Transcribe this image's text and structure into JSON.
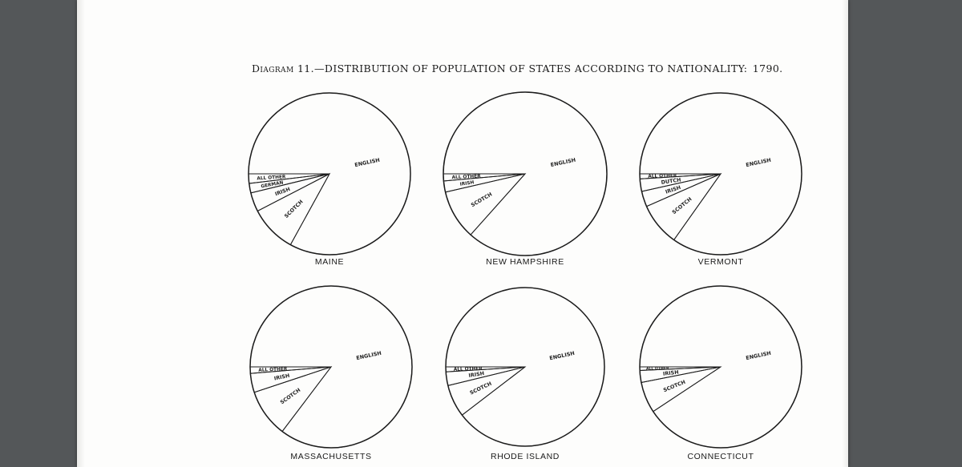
{
  "diagram": {
    "prefix": "Diagram",
    "title": "11.—DISTRIBUTION OF POPULATION OF STATES ACCORDING TO NATIONALITY:",
    "year": "1790."
  },
  "chart_data": [
    {
      "type": "pie",
      "title": "MAINE",
      "categories": [
        "ENGLISH",
        "SCOTCH",
        "IRISH",
        "GERMAN",
        "ALL OTHER"
      ],
      "values": [
        83.0,
        9.4,
        3.8,
        1.9,
        1.9
      ]
    },
    {
      "type": "pie",
      "title": "NEW HAMPSHIRE",
      "categories": [
        "ENGLISH",
        "SCOTCH",
        "IRISH",
        "ALL OTHER"
      ],
      "values": [
        86.6,
        9.8,
        2.2,
        1.4
      ]
    },
    {
      "type": "pie",
      "title": "VERMONT",
      "categories": [
        "ENGLISH",
        "SCOTCH",
        "IRISH",
        "DUTCH",
        "ALL OTHER"
      ],
      "values": [
        84.8,
        8.6,
        3.1,
        2.5,
        1.0
      ]
    },
    {
      "type": "pie",
      "title": "MASSACHUSETTS",
      "categories": [
        "ENGLISH",
        "SCOTCH",
        "IRISH",
        "ALL OTHER"
      ],
      "values": [
        85.3,
        9.6,
        3.8,
        1.3
      ]
    },
    {
      "type": "pie",
      "title": "RHODE ISLAND",
      "categories": [
        "ENGLISH",
        "SCOTCH",
        "IRISH",
        "ALL OTHER"
      ],
      "values": [
        89.6,
        6.6,
        2.8,
        1.0
      ]
    },
    {
      "type": "pie",
      "title": "CONNECTICUT",
      "categories": [
        "ENGLISH",
        "SCOTCH",
        "IRISH",
        "ALL OTHER"
      ],
      "values": [
        90.7,
        6.2,
        2.4,
        0.7
      ]
    }
  ]
}
